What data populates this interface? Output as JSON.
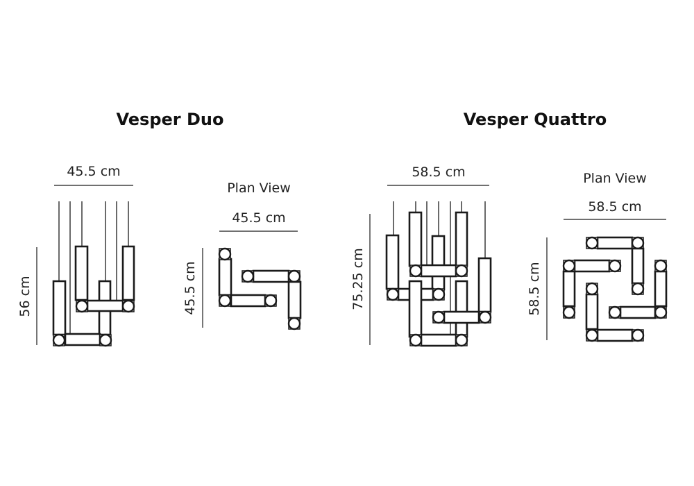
{
  "colors": {
    "line": "#1a1a1a",
    "background": "#ffffff"
  },
  "duo": {
    "title": "Vesper Duo",
    "front_width": "45.5 cm",
    "front_height": "56 cm",
    "plan_title": "Plan View",
    "plan_width": "45.5 cm",
    "plan_depth": "45.5 cm"
  },
  "quattro": {
    "title": "Vesper Quattro",
    "front_width": "58.5 cm",
    "front_height": "75.25 cm",
    "plan_title": "Plan View",
    "plan_width": "58.5 cm",
    "plan_depth": "58.5 cm"
  }
}
